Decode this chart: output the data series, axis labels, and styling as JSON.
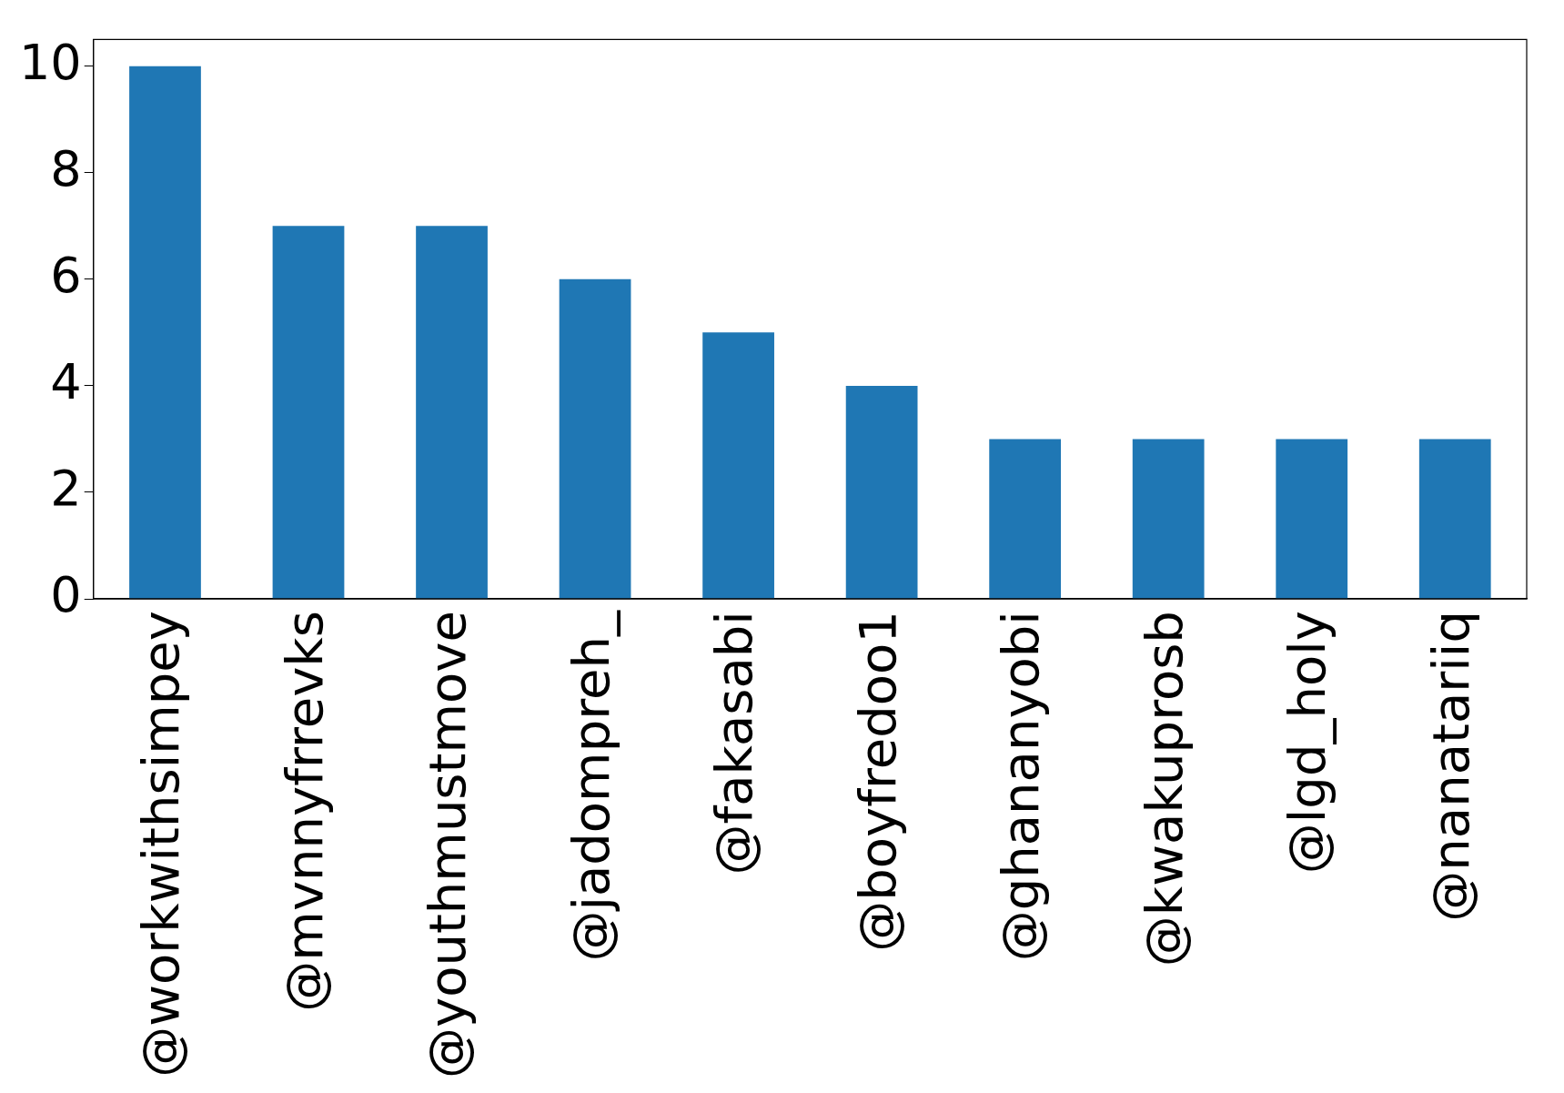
{
  "chart_data": {
    "type": "bar",
    "categories": [
      "@workwithsimpey",
      "@mvnnyfrrevks",
      "@youthmustmove",
      "@jadompreh_",
      "@fakasabi",
      "@boyfredoo1",
      "@ghananyobi",
      "@kwakuprosb",
      "@lgd_holy",
      "@nanatariiq"
    ],
    "values": [
      10,
      7,
      7,
      6,
      5,
      4,
      3,
      3,
      3,
      3
    ],
    "color": "#1f77b4",
    "ylim": [
      0,
      10.5
    ],
    "yticks": [
      0,
      2,
      4,
      6,
      8,
      10
    ],
    "grid": false,
    "legend": false
  }
}
